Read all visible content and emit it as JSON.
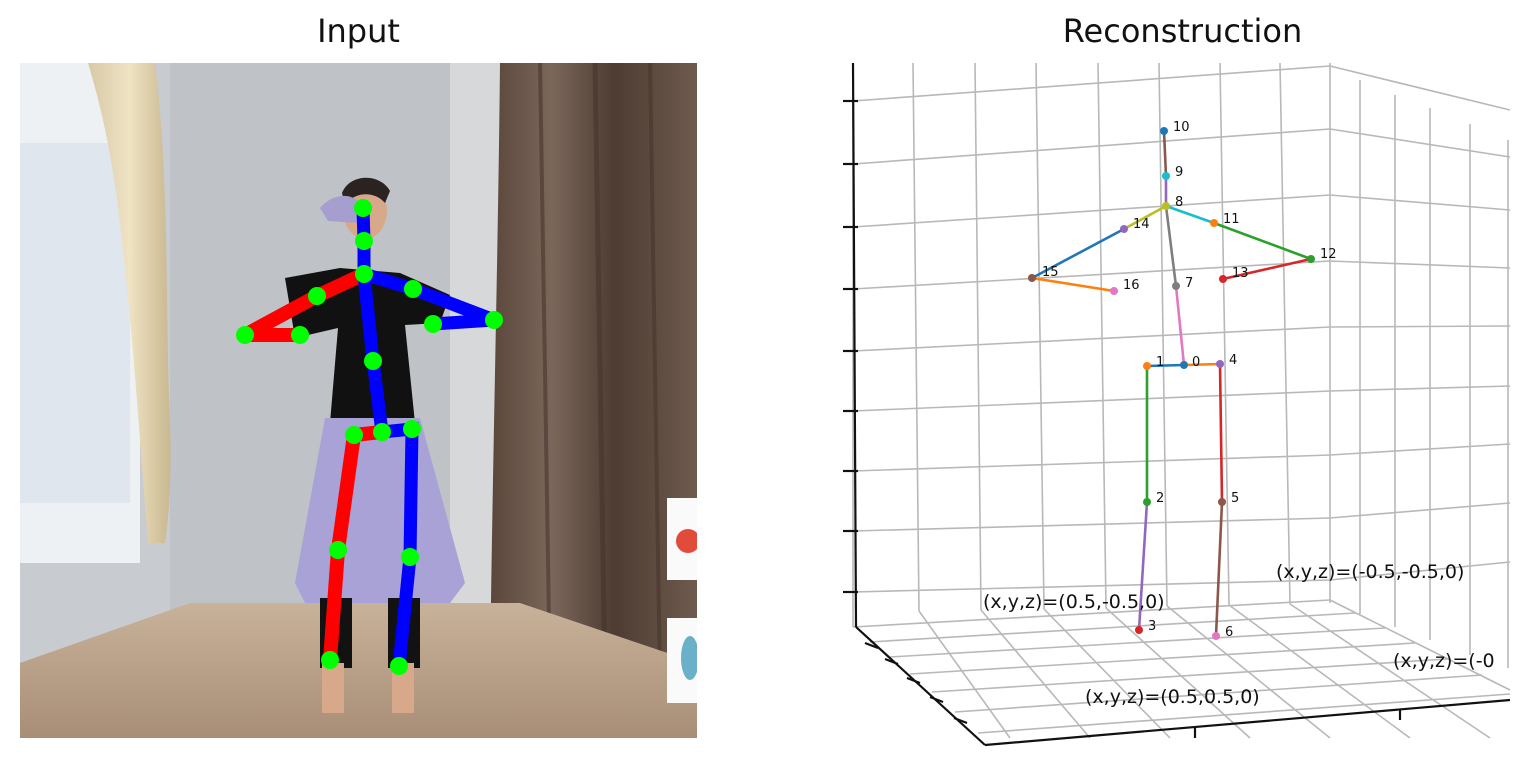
{
  "titles": {
    "input": "Input",
    "reconstruction": "Reconstruction"
  },
  "colors": {
    "left_limb": "#ff0000",
    "right_limb": "#0000ff",
    "keypoint": "#00ff00"
  },
  "joints": [
    {
      "id": "0",
      "label": "0",
      "color": "#1f77b4"
    },
    {
      "id": "1",
      "label": "1",
      "color": "#ff7f0e"
    },
    {
      "id": "2",
      "label": "2",
      "color": "#2ca02c"
    },
    {
      "id": "3",
      "label": "3",
      "color": "#d62728"
    },
    {
      "id": "4",
      "label": "4",
      "color": "#9467bd"
    },
    {
      "id": "5",
      "label": "5",
      "color": "#8c564b"
    },
    {
      "id": "6",
      "label": "6",
      "color": "#e377c2"
    },
    {
      "id": "7",
      "label": "7",
      "color": "#7f7f7f"
    },
    {
      "id": "8",
      "label": "8",
      "color": "#bcbd22"
    },
    {
      "id": "9",
      "label": "9",
      "color": "#17becf"
    },
    {
      "id": "10",
      "label": "10",
      "color": "#1f77b4"
    },
    {
      "id": "11",
      "label": "11",
      "color": "#ff7f0e"
    },
    {
      "id": "12",
      "label": "12",
      "color": "#2ca02c"
    },
    {
      "id": "13",
      "label": "13",
      "color": "#d62728"
    },
    {
      "id": "14",
      "label": "14",
      "color": "#9467bd"
    },
    {
      "id": "15",
      "label": "15",
      "color": "#8c564b"
    },
    {
      "id": "16",
      "label": "16",
      "color": "#e377c2"
    }
  ],
  "corner_labels": {
    "a": "(x,y,z)=(0.5,-0.5,0)",
    "b": "(x,y,z)=(-0.5,-0.5,0)",
    "c": "(x,y,z)=(-0",
    "d": "(x,y,z)=(0.5,0.5,0)"
  }
}
